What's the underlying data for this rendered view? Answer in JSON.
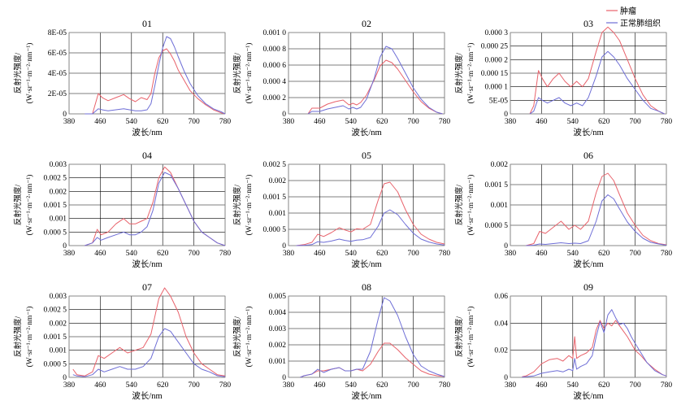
{
  "colors": {
    "tumor": "#e8626b",
    "normal": "#6e6ed6",
    "grid": "#000000",
    "frame": "#8c8c8c"
  },
  "legend": {
    "tumor": "肿瘤",
    "normal": "正常肺组织"
  },
  "chart_data": [
    {
      "type": "line",
      "title": "01",
      "xlabel": "波长/nm",
      "ylabel": "反射光强度/",
      "ylabel2": "(W·sr⁻¹·m⁻²·nm⁻¹)",
      "xlim": [
        380,
        780
      ],
      "ylim": [
        0,
        8e-05
      ],
      "xticks": [
        "380",
        "460",
        "540",
        "620",
        "700",
        "780"
      ],
      "yticks": [
        "0",
        "2E-05",
        "4E-05",
        "6E-05",
        "8E-05"
      ],
      "x": [
        420,
        440,
        455,
        465,
        480,
        500,
        520,
        535,
        550,
        565,
        580,
        590,
        600,
        610,
        620,
        630,
        640,
        650,
        660,
        675,
        690,
        710,
        730,
        750,
        770,
        780
      ],
      "series": [
        {
          "name": "肿瘤",
          "values": [
            0,
            0,
            2e-05,
            1.6e-05,
            1.3e-05,
            1.6e-05,
            1.9e-05,
            1.5e-05,
            1.2e-05,
            1.6e-05,
            1.4e-05,
            2e-05,
            4e-05,
            5.5e-05,
            6.2e-05,
            6.4e-05,
            5.9e-05,
            5.2e-05,
            4.3e-05,
            3.3e-05,
            2.3e-05,
            1.5e-05,
            9e-06,
            4e-06,
            1e-06,
            0
          ]
        },
        {
          "name": "正常肺组织",
          "values": [
            0,
            0,
            5e-06,
            4e-06,
            3e-06,
            4e-06,
            5e-06,
            4e-06,
            3e-06,
            3e-06,
            4e-06,
            1e-05,
            2.8e-05,
            4.8e-05,
            6.5e-05,
            7.6e-05,
            7.4e-05,
            6.6e-05,
            5.6e-05,
            4.2e-05,
            3e-05,
            1.8e-05,
            1e-05,
            5e-06,
            2e-06,
            0
          ]
        }
      ]
    },
    {
      "type": "line",
      "title": "02",
      "xlabel": "波长/nm",
      "ylabel": "反射光强度/",
      "ylabel2": "(W·sr⁻¹·m⁻²·nm⁻¹)",
      "xlim": [
        380,
        780
      ],
      "ylim": [
        0,
        0.001
      ],
      "xticks": [
        "380",
        "460",
        "540",
        "620",
        "700",
        "780"
      ],
      "yticks": [
        "0",
        "0.000 2",
        "0.000 4",
        "0.000 6",
        "0.000 8",
        "0.001 0"
      ],
      "x": [
        430,
        440,
        460,
        480,
        500,
        520,
        535,
        545,
        555,
        565,
        580,
        600,
        615,
        630,
        645,
        660,
        680,
        700,
        720,
        740,
        760,
        775
      ],
      "series": [
        {
          "name": "肿瘤",
          "values": [
            0,
            7e-05,
            7e-05,
            0.00012,
            0.00015,
            0.00017,
            0.00011,
            0.00013,
            0.00011,
            0.00014,
            0.00023,
            0.00042,
            0.00059,
            0.00066,
            0.00063,
            0.00055,
            0.00041,
            0.00027,
            0.00015,
            7e-05,
            2e-05,
            0
          ]
        },
        {
          "name": "正常肺组织",
          "values": [
            0,
            3e-05,
            3e-05,
            6e-05,
            8e-05,
            0.0001,
            6e-05,
            8e-05,
            6e-05,
            8e-05,
            0.00018,
            0.00044,
            0.0007,
            0.00083,
            0.0008,
            0.00068,
            0.0005,
            0.00032,
            0.00018,
            8e-05,
            2e-05,
            0
          ]
        }
      ]
    },
    {
      "type": "line",
      "title": "03",
      "xlabel": "波长/nm",
      "ylabel": "反射光强度/",
      "ylabel2": "(W·sr⁻¹·m⁻²·nm⁻¹)",
      "xlim": [
        380,
        780
      ],
      "ylim": [
        0,
        0.0003
      ],
      "xticks": [
        "380",
        "460",
        "540",
        "620",
        "700",
        "780"
      ],
      "yticks": [
        "0",
        "5E-05",
        "0.000 1",
        "0.000 15",
        "0.000 2",
        "0.000 25",
        "0.000 3"
      ],
      "x": [
        430,
        440,
        452,
        462,
        475,
        490,
        505,
        520,
        535,
        550,
        565,
        580,
        600,
        615,
        630,
        645,
        660,
        680,
        700,
        720,
        740,
        760,
        775
      ],
      "series": [
        {
          "name": "肿瘤",
          "values": [
            0,
            3e-05,
            0.00016,
            0.00013,
            0.0001,
            0.00013,
            0.00015,
            0.00012,
            0.0001,
            0.00012,
            0.0001,
            0.00013,
            0.00023,
            0.0003,
            0.00032,
            0.0003,
            0.00027,
            0.0002,
            0.00013,
            7e-05,
            3e-05,
            1e-05,
            0
          ]
        },
        {
          "name": "正常肺组织",
          "values": [
            0,
            1e-05,
            6e-05,
            5e-05,
            4e-05,
            5e-05,
            6e-05,
            4e-05,
            3e-05,
            4e-05,
            3e-05,
            6e-05,
            0.00014,
            0.00021,
            0.00023,
            0.00021,
            0.00018,
            0.00013,
            9e-05,
            5e-05,
            2e-05,
            1e-05,
            0
          ]
        }
      ]
    },
    {
      "type": "line",
      "title": "04",
      "xlabel": "波长/nm",
      "ylabel": "反射光强度/",
      "ylabel2": "(W·sr⁻¹·m⁻²·nm⁻¹)",
      "xlim": [
        380,
        780
      ],
      "ylim": [
        0,
        0.003
      ],
      "xticks": [
        "380",
        "460",
        "540",
        "620",
        "700",
        "780"
      ],
      "yticks": [
        "0",
        "0.000 5",
        "0.001",
        "0.001 5",
        "0.002",
        "0.002 5",
        "0.003"
      ],
      "x": [
        420,
        440,
        452,
        462,
        480,
        500,
        520,
        535,
        550,
        565,
        580,
        595,
        610,
        625,
        640,
        660,
        680,
        700,
        720,
        740,
        760,
        780
      ],
      "series": [
        {
          "name": "肿瘤",
          "values": [
            0,
            0.0001,
            0.0006,
            0.0004,
            0.0005,
            0.0008,
            0.001,
            0.0008,
            0.0008,
            0.0009,
            0.001,
            0.0016,
            0.0025,
            0.0029,
            0.0027,
            0.0021,
            0.0015,
            0.0009,
            0.0005,
            0.0003,
            0.0001,
            0
          ]
        },
        {
          "name": "正常肺组织",
          "values": [
            0,
            0.0001,
            0.0003,
            0.0002,
            0.0003,
            0.0004,
            0.0005,
            0.0004,
            0.0004,
            0.0005,
            0.0007,
            0.0013,
            0.0023,
            0.0027,
            0.0026,
            0.0021,
            0.0015,
            0.0009,
            0.0005,
            0.0003,
            0.0001,
            0
          ]
        }
      ]
    },
    {
      "type": "line",
      "title": "05",
      "xlabel": "波长/nm",
      "ylabel": "反射光强度/",
      "ylabel2": "(W·sr⁻¹·m⁻²·nm⁻¹)",
      "xlim": [
        380,
        780
      ],
      "ylim": [
        0,
        0.0025
      ],
      "xticks": [
        "380",
        "460",
        "540",
        "620",
        "700",
        "780"
      ],
      "yticks": [
        "0",
        "0.000 5",
        "0.001",
        "0.001 5",
        "0.002",
        "0.002 5"
      ],
      "x": [
        400,
        420,
        440,
        455,
        470,
        490,
        510,
        525,
        540,
        555,
        570,
        590,
        610,
        625,
        640,
        660,
        680,
        700,
        720,
        740,
        760,
        780
      ],
      "series": [
        {
          "name": "肿瘤",
          "values": [
            0,
            3e-05,
            0.0001,
            0.00035,
            0.00028,
            0.0004,
            0.00055,
            0.00048,
            0.00042,
            0.00052,
            0.0005,
            0.00065,
            0.0014,
            0.0019,
            0.00195,
            0.00165,
            0.0011,
            0.00065,
            0.00035,
            0.0002,
            0.0001,
            5e-05
          ]
        },
        {
          "name": "正常肺组织",
          "values": [
            0,
            1e-05,
            3e-05,
            0.00012,
            0.0001,
            0.00014,
            0.0002,
            0.00016,
            0.00013,
            0.00017,
            0.00018,
            0.00025,
            0.0006,
            0.001,
            0.0011,
            0.00095,
            0.00065,
            0.00038,
            0.0002,
            0.00011,
            5e-05,
            2e-05
          ]
        }
      ]
    },
    {
      "type": "line",
      "title": "06",
      "xlabel": "波长/nm",
      "ylabel": "反射光强度/",
      "ylabel2": "(W·sr⁻¹·m⁻²·nm⁻¹)",
      "xlim": [
        380,
        780
      ],
      "ylim": [
        0,
        0.002
      ],
      "xticks": [
        "380",
        "460",
        "540",
        "620",
        "700",
        "780"
      ],
      "yticks": [
        "0",
        "0.000 5",
        "0.001",
        "0.001 5",
        "0.002"
      ],
      "x": [
        420,
        440,
        455,
        470,
        490,
        510,
        530,
        545,
        560,
        580,
        600,
        615,
        630,
        645,
        660,
        680,
        700,
        720,
        740,
        760,
        780
      ],
      "series": [
        {
          "name": "肿瘤",
          "values": [
            0,
            5e-05,
            0.00035,
            0.0003,
            0.00045,
            0.0006,
            0.0004,
            0.0005,
            0.0004,
            0.0006,
            0.0013,
            0.0017,
            0.00178,
            0.0016,
            0.00125,
            0.0008,
            0.0005,
            0.00025,
            0.00012,
            5e-05,
            2e-05
          ]
        },
        {
          "name": "正常肺组织",
          "values": [
            0,
            1e-05,
            4e-05,
            3e-05,
            5e-05,
            7e-05,
            5e-05,
            6e-05,
            5e-05,
            0.00012,
            0.0006,
            0.0011,
            0.00125,
            0.00115,
            0.0009,
            0.00058,
            0.00035,
            0.00018,
            8e-05,
            4e-05,
            1e-05
          ]
        }
      ]
    },
    {
      "type": "line",
      "title": "07",
      "xlabel": "波长/nm",
      "ylabel": "反射光强度/",
      "ylabel2": "(W·sr⁻¹·m⁻²·nm⁻¹)",
      "xlim": [
        380,
        780
      ],
      "ylim": [
        0,
        0.003
      ],
      "xticks": [
        "380",
        "460",
        "540",
        "620",
        "700",
        "780"
      ],
      "yticks": [
        "0",
        "0.000 5",
        "0.001",
        "0.001 5",
        "0.002",
        "0.002 5",
        "0.003"
      ],
      "x": [
        390,
        400,
        420,
        440,
        455,
        470,
        490,
        510,
        530,
        550,
        570,
        590,
        610,
        625,
        640,
        660,
        680,
        700,
        720,
        740,
        760,
        780
      ],
      "series": [
        {
          "name": "肿瘤",
          "values": [
            0.0003,
            0.0001,
            5e-05,
            0.0002,
            0.0008,
            0.0007,
            0.0009,
            0.0011,
            0.0009,
            0.001,
            0.0011,
            0.0016,
            0.0029,
            0.0033,
            0.003,
            0.0024,
            0.0015,
            0.0009,
            0.0005,
            0.0003,
            0.0001,
            5e-05
          ]
        },
        {
          "name": "正常肺组织",
          "values": [
            0.0001,
            5e-05,
            2e-05,
            0.0001,
            0.0003,
            0.0002,
            0.0003,
            0.0004,
            0.0003,
            0.0003,
            0.0004,
            0.0007,
            0.0015,
            0.0018,
            0.0017,
            0.0013,
            0.0009,
            0.0005,
            0.0003,
            0.0002,
            6e-05,
            2e-05
          ]
        }
      ]
    },
    {
      "type": "line",
      "title": "08",
      "xlabel": "波长/nm",
      "ylabel": "反射光强度/",
      "ylabel2": "(W·sr⁻¹·m⁻²·nm⁻¹)",
      "xlim": [
        380,
        780
      ],
      "ylim": [
        0,
        0.005
      ],
      "xticks": [
        "380",
        "460",
        "540",
        "620",
        "700",
        "780"
      ],
      "yticks": [
        "0",
        "0.001",
        "0.002",
        "0.003",
        "0.004",
        "0.005"
      ],
      "x": [
        410,
        420,
        440,
        455,
        470,
        490,
        510,
        525,
        540,
        555,
        570,
        590,
        610,
        625,
        640,
        660,
        680,
        700,
        720,
        740,
        760,
        780
      ],
      "series": [
        {
          "name": "肿瘤",
          "values": [
            0,
            0.0001,
            0.0002,
            0.0004,
            0.0004,
            0.0005,
            0.0006,
            0.0004,
            0.0004,
            0.0005,
            0.0004,
            0.0008,
            0.0016,
            0.0021,
            0.0021,
            0.0017,
            0.0012,
            0.0008,
            0.0004,
            0.0002,
            0.0001,
            5e-05
          ]
        },
        {
          "name": "正常肺组织",
          "values": [
            0,
            0.0001,
            0.0002,
            0.0005,
            0.0003,
            0.0005,
            0.0006,
            0.0004,
            0.0004,
            0.0005,
            0.0005,
            0.0016,
            0.0036,
            0.0049,
            0.0047,
            0.0038,
            0.0025,
            0.0014,
            0.0007,
            0.0004,
            0.0002,
            5e-05
          ]
        }
      ]
    },
    {
      "type": "line",
      "title": "09",
      "xlabel": "波长/nm",
      "ylabel": "反射光强度/",
      "ylabel2": "(W·sr⁻¹·m⁻²·nm⁻¹)",
      "xlim": [
        380,
        780
      ],
      "ylim": [
        0,
        0.06
      ],
      "xticks": [
        "380",
        "460",
        "540",
        "620",
        "700",
        "780"
      ],
      "yticks": [
        "0",
        "0.02",
        "0.04",
        "0.06"
      ],
      "x": [
        410,
        420,
        440,
        460,
        480,
        500,
        515,
        530,
        540,
        545,
        550,
        560,
        575,
        590,
        600,
        610,
        620,
        630,
        640,
        650,
        660,
        670,
        680,
        690,
        700,
        715,
        730,
        750,
        770,
        780
      ],
      "series": [
        {
          "name": "肿瘤",
          "values": [
            0.0005,
            0.001,
            0.004,
            0.01,
            0.013,
            0.014,
            0.012,
            0.016,
            0.014,
            0.03,
            0.014,
            0.016,
            0.018,
            0.022,
            0.035,
            0.042,
            0.036,
            0.04,
            0.038,
            0.042,
            0.038,
            0.034,
            0.03,
            0.025,
            0.02,
            0.016,
            0.011,
            0.006,
            0.002,
            0.001
          ]
        },
        {
          "name": "正常肺组织",
          "values": [
            0.0002,
            0.0004,
            0.001,
            0.003,
            0.004,
            0.005,
            0.004,
            0.006,
            0.005,
            0.014,
            0.006,
            0.008,
            0.01,
            0.016,
            0.03,
            0.041,
            0.033,
            0.046,
            0.05,
            0.044,
            0.039,
            0.04,
            0.036,
            0.03,
            0.025,
            0.018,
            0.011,
            0.005,
            0.002,
            0.001
          ]
        }
      ]
    }
  ]
}
